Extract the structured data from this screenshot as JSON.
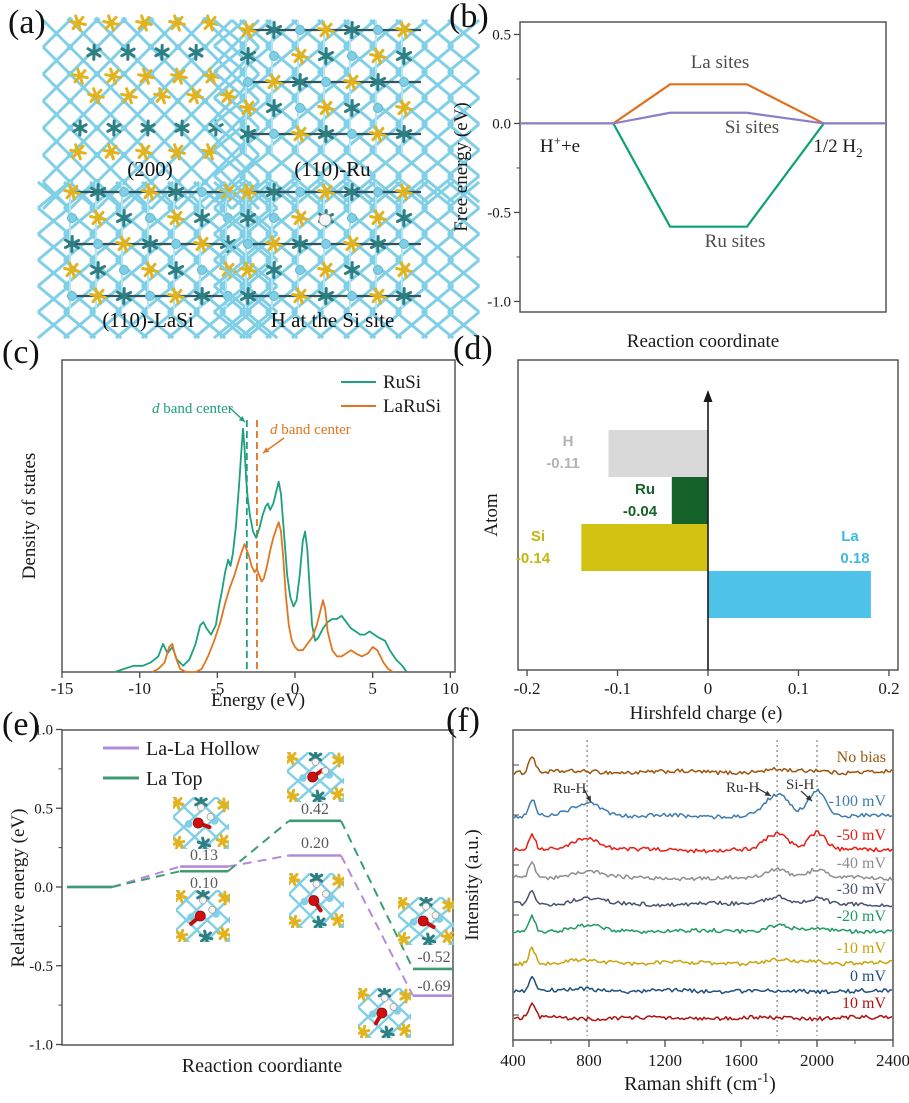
{
  "panels": {
    "a": {
      "label": "(a)"
    },
    "b": {
      "label": "(b)"
    },
    "c": {
      "label": "(c)"
    },
    "d": {
      "label": "(d)"
    },
    "e": {
      "label": "(e)"
    },
    "f": {
      "label": "(f)"
    }
  },
  "panel_a": {
    "structures": [
      {
        "caption": "(200)",
        "variant": "slab200"
      },
      {
        "caption": "(110)-Ru",
        "variant": "slab110ru"
      },
      {
        "caption": "(110)-LaSi",
        "variant": "slab110lasi"
      },
      {
        "caption": "H at the Si site",
        "variant": "slab110h"
      }
    ],
    "colors": {
      "cyan": "#7FCFE6",
      "light_cyan": "#B2E4F2",
      "teal": "#2D7F83",
      "gold": "#E2B31D",
      "white_atom": "#F6F6F6",
      "red_atom": "#CE1010"
    }
  },
  "chart_data": [
    {
      "id": "b",
      "type": "line",
      "xlabel": "Reaction coordinate",
      "ylabel": "Free energy (eV)",
      "ylim": [
        -1.05,
        0.57
      ],
      "ytick_labels": [
        "0.5",
        "0.0",
        "-0.5",
        "-1.0"
      ],
      "ytick_values": [
        0.5,
        0.0,
        -0.5,
        -1.0
      ],
      "x_breaks": [
        0,
        0.255,
        0.41,
        0.62,
        0.83,
        1.0
      ],
      "series": [
        {
          "name": "La sites",
          "color": "#E0711C",
          "level": 0.22
        },
        {
          "name": "Ru sites",
          "color": "#0CA371",
          "level": -0.58
        },
        {
          "name": "Si sites",
          "color": "#8C7FC6",
          "level": 0.06
        }
      ],
      "endpoints": {
        "reactant_base": "H",
        "reactant_sup": "+",
        "reactant_tail": "+e",
        "product_base": "1/2 H",
        "product_sub": "2"
      },
      "label_color": "#4D4D4D"
    },
    {
      "id": "c",
      "type": "line",
      "xlabel": "Energy (eV)",
      "ylabel": "Density of states",
      "xlim": [
        -15,
        10.3
      ],
      "xtick_labels": [
        "-15",
        "-10",
        "-5",
        "0",
        "5",
        "10"
      ],
      "xtick_values": [
        -15,
        -10,
        -5,
        0,
        5,
        10
      ],
      "legend_position": "top-right",
      "series": [
        {
          "name": "RuSi",
          "color": "#1CA17C",
          "d_band_center": -3.1,
          "points": [
            [
              -11.6,
              0
            ],
            [
              -11,
              1
            ],
            [
              -10.4,
              2
            ],
            [
              -9.8,
              2
            ],
            [
              -9.3,
              3
            ],
            [
              -8.8,
              5
            ],
            [
              -8.5,
              9
            ],
            [
              -8.2,
              6
            ],
            [
              -7.9,
              8
            ],
            [
              -7.6,
              4
            ],
            [
              -7.2,
              2
            ],
            [
              -6.8,
              4
            ],
            [
              -6.4,
              9
            ],
            [
              -6.1,
              15
            ],
            [
              -5.9,
              16
            ],
            [
              -5.7,
              14
            ],
            [
              -5.4,
              12
            ],
            [
              -5.1,
              15
            ],
            [
              -4.9,
              21
            ],
            [
              -4.7,
              26
            ],
            [
              -4.5,
              32
            ],
            [
              -4.3,
              36
            ],
            [
              -4.15,
              34
            ],
            [
              -4,
              38
            ],
            [
              -3.8,
              47
            ],
            [
              -3.6,
              60
            ],
            [
              -3.45,
              71
            ],
            [
              -3.35,
              78
            ],
            [
              -3.25,
              72
            ],
            [
              -3.15,
              62
            ],
            [
              -3.05,
              56
            ],
            [
              -2.9,
              50
            ],
            [
              -2.7,
              45
            ],
            [
              -2.5,
              43
            ],
            [
              -2.3,
              46
            ],
            [
              -2.1,
              50
            ],
            [
              -1.9,
              53
            ],
            [
              -1.75,
              54
            ],
            [
              -1.6,
              52
            ],
            [
              -1.4,
              54
            ],
            [
              -1.2,
              58
            ],
            [
              -1.05,
              61
            ],
            [
              -0.9,
              57
            ],
            [
              -0.7,
              44
            ],
            [
              -0.5,
              31
            ],
            [
              -0.3,
              24
            ],
            [
              -0.1,
              21
            ],
            [
              0.1,
              23
            ],
            [
              0.3,
              31
            ],
            [
              0.5,
              42
            ],
            [
              0.65,
              45
            ],
            [
              0.8,
              39
            ],
            [
              0.95,
              26
            ],
            [
              1.1,
              15
            ],
            [
              1.3,
              10
            ],
            [
              1.5,
              11
            ],
            [
              1.8,
              14
            ],
            [
              2.1,
              16
            ],
            [
              2.4,
              17
            ],
            [
              2.7,
              17
            ],
            [
              3,
              18
            ],
            [
              3.3,
              16
            ],
            [
              3.6,
              14
            ],
            [
              3.9,
              13
            ],
            [
              4.2,
              12
            ],
            [
              4.5,
              12
            ],
            [
              4.8,
              13
            ],
            [
              5.1,
              12
            ],
            [
              5.4,
              11
            ],
            [
              5.8,
              10
            ],
            [
              6.1,
              7
            ],
            [
              6.5,
              4
            ],
            [
              6.9,
              2
            ],
            [
              7.2,
              0
            ]
          ]
        },
        {
          "name": "LaRuSi",
          "color": "#E0761F",
          "d_band_center": -2.45,
          "points": [
            [
              -9.2,
              0
            ],
            [
              -8.8,
              1
            ],
            [
              -8.4,
              3
            ],
            [
              -8.1,
              8
            ],
            [
              -7.9,
              9
            ],
            [
              -7.7,
              5
            ],
            [
              -7.4,
              1
            ],
            [
              -7,
              0
            ],
            [
              -6.4,
              0
            ],
            [
              -6,
              1
            ],
            [
              -5.6,
              5
            ],
            [
              -5.2,
              10
            ],
            [
              -4.8,
              16
            ],
            [
              -4.5,
              22
            ],
            [
              -4.2,
              27
            ],
            [
              -3.9,
              31
            ],
            [
              -3.6,
              36
            ],
            [
              -3.4,
              39
            ],
            [
              -3.25,
              41
            ],
            [
              -3.1,
              39
            ],
            [
              -2.95,
              37
            ],
            [
              -2.8,
              34
            ],
            [
              -2.6,
              32
            ],
            [
              -2.45,
              33
            ],
            [
              -2.3,
              31
            ],
            [
              -2.15,
              29
            ],
            [
              -2,
              30
            ],
            [
              -1.8,
              34
            ],
            [
              -1.6,
              39
            ],
            [
              -1.4,
              43
            ],
            [
              -1.2,
              46
            ],
            [
              -1.05,
              48
            ],
            [
              -0.9,
              45
            ],
            [
              -0.75,
              36
            ],
            [
              -0.6,
              25
            ],
            [
              -0.4,
              15
            ],
            [
              -0.2,
              10
            ],
            [
              0,
              8
            ],
            [
              0.2,
              7
            ],
            [
              0.5,
              7
            ],
            [
              0.8,
              9
            ],
            [
              1.1,
              11
            ],
            [
              1.4,
              15
            ],
            [
              1.6,
              19
            ],
            [
              1.8,
              23
            ],
            [
              1.95,
              20
            ],
            [
              2.1,
              13
            ],
            [
              2.4,
              7
            ],
            [
              2.7,
              5
            ],
            [
              3,
              5
            ],
            [
              3.3,
              6
            ],
            [
              3.6,
              7
            ],
            [
              3.9,
              6
            ],
            [
              4.3,
              5
            ],
            [
              4.7,
              6
            ],
            [
              5,
              8
            ],
            [
              5.3,
              7
            ],
            [
              5.7,
              3
            ],
            [
              6,
              1
            ],
            [
              6.3,
              0
            ]
          ]
        }
      ],
      "dband_annotations": [
        {
          "prefix": "d",
          "rest": " band center",
          "color": "#1CA17C"
        },
        {
          "prefix": "d",
          "rest": " band center",
          "color": "#E0761F"
        }
      ]
    },
    {
      "id": "d",
      "type": "bar",
      "orientation": "horizontal",
      "xlabel": "Hirshfeld charge (e)",
      "ylabel": "Atom",
      "xlim": [
        -0.21,
        0.21
      ],
      "xtick_labels": [
        "-0.2",
        "-0.1",
        "0",
        "0.1",
        "0.2"
      ],
      "xtick_values": [
        -0.2,
        -0.1,
        0,
        0.1,
        0.2
      ],
      "categories": [
        "H",
        "Ru",
        "Si",
        "La"
      ],
      "values": [
        -0.11,
        -0.04,
        -0.14,
        0.18
      ],
      "value_labels": [
        "-0.11",
        "-0.04",
        "-0.14",
        "0.18"
      ],
      "bar_colors": [
        "#D9D9D9",
        "#15632B",
        "#D2C313",
        "#4EC2E8"
      ],
      "label_colors": [
        "#B3B3B3",
        "#15632B",
        "#C8B40E",
        "#3FB9E4"
      ]
    },
    {
      "id": "e",
      "type": "energy-path",
      "xlabel": "Reaction coordiante",
      "ylabel": "Relative energy (eV)",
      "ylim": [
        -1.0,
        1.0
      ],
      "ytick_labels": [
        "1.0",
        "0.5",
        "0.0",
        "-0.5",
        "-1.0"
      ],
      "ytick_values": [
        1.0,
        0.5,
        0.0,
        -0.5,
        -1.0
      ],
      "series": [
        {
          "name": "La-La Hollow",
          "color": "#B28CDB",
          "levels": [
            0,
            0.13,
            0.2,
            -0.69
          ]
        },
        {
          "name": "La Top",
          "color": "#3D9C72",
          "levels": [
            0,
            0.1,
            0.42,
            -0.52
          ]
        }
      ],
      "value_labels": [
        "0.13",
        "0.10",
        "0.42",
        "0.20",
        "-0.52",
        "-0.69"
      ],
      "value_label_color": "#595959",
      "inset_count": 6
    },
    {
      "id": "f",
      "type": "spectra",
      "xlabel_parts": [
        "Raman shift (cm",
        "-1",
        ")"
      ],
      "ylabel": "Intensity (a.u.)",
      "xlim": [
        400,
        2400
      ],
      "xtick_labels": [
        "400",
        "800",
        "1200",
        "1600",
        "2000",
        "2400"
      ],
      "xtick_values": [
        400,
        800,
        1200,
        1600,
        2000,
        2400
      ],
      "dotted_lines": [
        790,
        1790,
        2000
      ],
      "traces": [
        {
          "name": "No bias",
          "color": "#99560E",
          "peaks": [
            [
              500,
              16,
              17
            ],
            [
              1790,
              60,
              2
            ],
            [
              2000,
              45,
              2
            ]
          ]
        },
        {
          "name": "-100 mV",
          "color": "#3F7CAE",
          "peaks": [
            [
              500,
              16,
              17
            ],
            [
              790,
              75,
              13
            ],
            [
              1790,
              60,
              21
            ],
            [
              2000,
              45,
              26
            ]
          ]
        },
        {
          "name": "-50 mV",
          "color": "#ED1B12",
          "peaks": [
            [
              500,
              16,
              16
            ],
            [
              790,
              75,
              12
            ],
            [
              1790,
              60,
              16
            ],
            [
              2000,
              45,
              18
            ]
          ]
        },
        {
          "name": "-40 mV",
          "color": "#8E8E8E",
          "peaks": [
            [
              500,
              16,
              15
            ],
            [
              790,
              75,
              7
            ],
            [
              1790,
              60,
              9
            ],
            [
              2000,
              45,
              9
            ]
          ]
        },
        {
          "name": "-30 mV",
          "color": "#4A5170",
          "peaks": [
            [
              500,
              16,
              15
            ],
            [
              790,
              75,
              6
            ],
            [
              1790,
              60,
              8
            ],
            [
              2000,
              45,
              5
            ]
          ]
        },
        {
          "name": "-20 mV",
          "color": "#1F9A63",
          "peaks": [
            [
              500,
              16,
              15
            ],
            [
              790,
              75,
              5
            ],
            [
              1790,
              60,
              6
            ],
            [
              2000,
              45,
              3
            ]
          ]
        },
        {
          "name": "-10 mV",
          "color": "#C9A30A",
          "peaks": [
            [
              500,
              16,
              16
            ],
            [
              790,
              75,
              3
            ],
            [
              1790,
              60,
              3
            ],
            [
              2000,
              45,
              2
            ]
          ]
        },
        {
          "name": "0 mV",
          "color": "#1F4F7C",
          "peaks": [
            [
              500,
              16,
              15
            ],
            [
              790,
              75,
              2
            ]
          ]
        },
        {
          "name": "10 mV",
          "color": "#AF1111",
          "peaks": [
            [
              500,
              16,
              15
            ]
          ]
        }
      ],
      "annotations": [
        {
          "text": "Ru-H"
        },
        {
          "text": "Ru-H"
        },
        {
          "text": "Si-H"
        }
      ],
      "annotation_color": "#333333"
    }
  ]
}
